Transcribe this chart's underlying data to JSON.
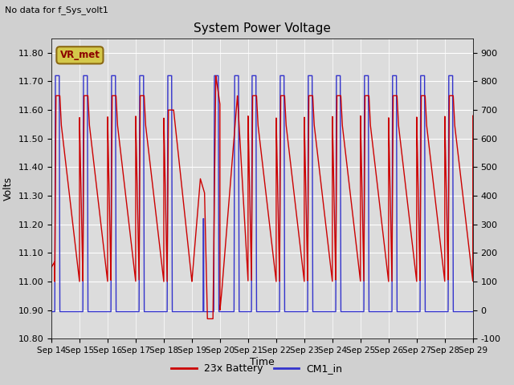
{
  "title": "System Power Voltage",
  "top_left_text": "No data for f_Sys_volt1",
  "xlabel": "Time",
  "ylabel": "Volts",
  "ylim_left": [
    10.8,
    11.85
  ],
  "ylim_right": [
    -100,
    950
  ],
  "yticks_left": [
    10.8,
    10.9,
    11.0,
    11.1,
    11.2,
    11.3,
    11.4,
    11.5,
    11.6,
    11.7,
    11.8
  ],
  "yticks_right": [
    -100,
    0,
    100,
    200,
    300,
    400,
    500,
    600,
    700,
    800,
    900
  ],
  "xtick_labels": [
    "Sep 14",
    "Sep 15",
    "Sep 16",
    "Sep 17",
    "Sep 18",
    "Sep 19",
    "Sep 20",
    "Sep 21",
    "Sep 22",
    "Sep 23",
    "Sep 24",
    "Sep 25",
    "Sep 26",
    "Sep 27",
    "Sep 28",
    "Sep 29"
  ],
  "fig_bg_color": "#d0d0d0",
  "plot_bg_color": "#dcdcdc",
  "line_red_color": "#cc0000",
  "line_blue_color": "#3333cc",
  "legend_labels": [
    "23x Battery",
    "CM1_in"
  ],
  "legend_colors": [
    "#cc0000",
    "#3333cc"
  ],
  "vr_met_box_color": "#d4c84a",
  "vr_met_text": "VR_met"
}
